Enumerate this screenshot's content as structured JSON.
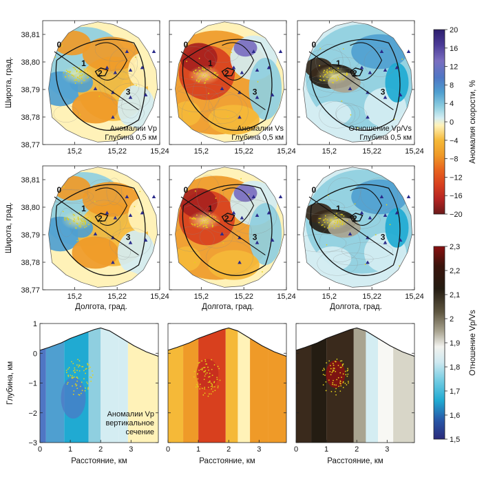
{
  "chart_data": {
    "type": "heatmap",
    "title": "",
    "map_panels": {
      "lon_ticks": [
        "15,2",
        "15,22",
        "15,24"
      ],
      "lat_ticks": [
        "38,81",
        "38,80",
        "38,79",
        "38,78",
        "38,77"
      ],
      "xlim": [
        15.185,
        15.24
      ],
      "ylim": [
        38.77,
        38.815
      ],
      "xlabel": "Долгота, град.",
      "ylabel": "Широта, град.",
      "profile_points": [
        "0",
        "1",
        "2",
        "3"
      ],
      "row1": [
        {
          "field": "vp",
          "annotation_line1": "Аномалии Vp",
          "annotation_line2": "Глубина 0,5 км"
        },
        {
          "field": "vs",
          "annotation_line1": "Аномалии Vs",
          "annotation_line2": "Глубина 0,5 км"
        },
        {
          "field": "ratio",
          "annotation_line1": "Отношение Vp/Vs",
          "annotation_line2": "Глубина 0,5 км"
        }
      ],
      "row2": [
        {
          "field": "vp"
        },
        {
          "field": "vs"
        },
        {
          "field": "ratio"
        }
      ]
    },
    "section_panels": {
      "x_ticks": [
        "0",
        "1",
        "2",
        "3"
      ],
      "y_ticks": [
        "1",
        "0",
        "−1",
        "−2",
        "−3"
      ],
      "xlim": [
        0,
        3.9
      ],
      "ylim": [
        -3,
        1
      ],
      "xlabel": "Расстояние, км",
      "ylabel": "Глубина, км",
      "panels": [
        {
          "field": "vp",
          "annotation_lines": [
            "Аномалии Vp",
            "вертикальное",
            "сечение"
          ]
        },
        {
          "field": "vs",
          "annotation_lines": []
        },
        {
          "field": "ratio",
          "annotation_lines": []
        }
      ]
    },
    "colorbar_velocity": {
      "title": "Аномалия скорости, %",
      "ticks": [
        "20",
        "16",
        "12",
        "8",
        "4",
        "0",
        "−4",
        "−8",
        "−12",
        "−16",
        "−20"
      ],
      "range": [
        -20,
        20
      ]
    },
    "colorbar_ratio": {
      "title": "Отношение Vp/Vs",
      "ticks": [
        "2,3",
        "2,2",
        "2,1",
        "2",
        "1,9",
        "1,8",
        "1,7",
        "1,6",
        "1,5"
      ],
      "range": [
        1.5,
        2.3
      ]
    }
  }
}
